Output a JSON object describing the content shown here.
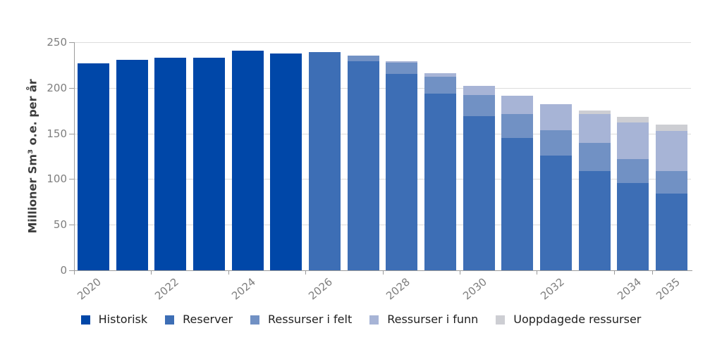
{
  "chart_data": {
    "type": "bar",
    "stacked": true,
    "title": "",
    "xlabel": "",
    "ylabel": "Millioner Sm³ o.e. per år",
    "ylim": [
      0,
      250
    ],
    "yticks": [
      0,
      50,
      100,
      150,
      200,
      250
    ],
    "grid": true,
    "legend_position": "bottom",
    "categories": [
      "2020",
      "2021",
      "2022",
      "2023",
      "2024",
      "2025",
      "2026",
      "2027",
      "2028",
      "2029",
      "2030",
      "2031",
      "2032",
      "2033",
      "2034",
      "2035"
    ],
    "labeled_categories": [
      "2020",
      "2022",
      "2024",
      "2026",
      "2028",
      "2030",
      "2032",
      "2034",
      "2035"
    ],
    "series": [
      {
        "name": "Historisk",
        "color": "#0047a8",
        "values": [
          227,
          231,
          233,
          233,
          241,
          238,
          0,
          0,
          0,
          0,
          0,
          0,
          0,
          0,
          0,
          0
        ]
      },
      {
        "name": "Reserver",
        "color": "#3d6eb5",
        "values": [
          0,
          0,
          0,
          0,
          0,
          0,
          239,
          229,
          215,
          194,
          169,
          145,
          126,
          109,
          96,
          84
        ]
      },
      {
        "name": "Ressurser i felt",
        "color": "#7191c4",
        "values": [
          0,
          0,
          0,
          0,
          0,
          0,
          0,
          6,
          12.5,
          18,
          23.5,
          26.5,
          27.5,
          30.5,
          26,
          24.5
        ]
      },
      {
        "name": "Ressurser i funn",
        "color": "#a7b4d6",
        "values": [
          0,
          0,
          0,
          0,
          0,
          0,
          0,
          0,
          1.5,
          4,
          10,
          20,
          28.5,
          31.5,
          40,
          44
        ]
      },
      {
        "name": "Uoppdagede ressurser",
        "color": "#cdced3",
        "values": [
          0,
          0,
          0,
          0,
          0,
          0,
          0,
          0,
          0,
          0,
          0,
          0,
          0,
          4,
          6,
          7.5
        ]
      }
    ],
    "totals": [
      227,
      231,
      233,
      233,
      241,
      238,
      239,
      235,
      229,
      216,
      202.5,
      191.5,
      182,
      175,
      168,
      160
    ]
  },
  "style": {
    "background": "#ffffff",
    "grid_color": "#dcdcdc",
    "axis_color": "#9b9b9b",
    "tick_label_color": "#7e7e7e",
    "axis_title_color": "#3d3d3d",
    "legend_text_color": "#1f1f1f"
  }
}
